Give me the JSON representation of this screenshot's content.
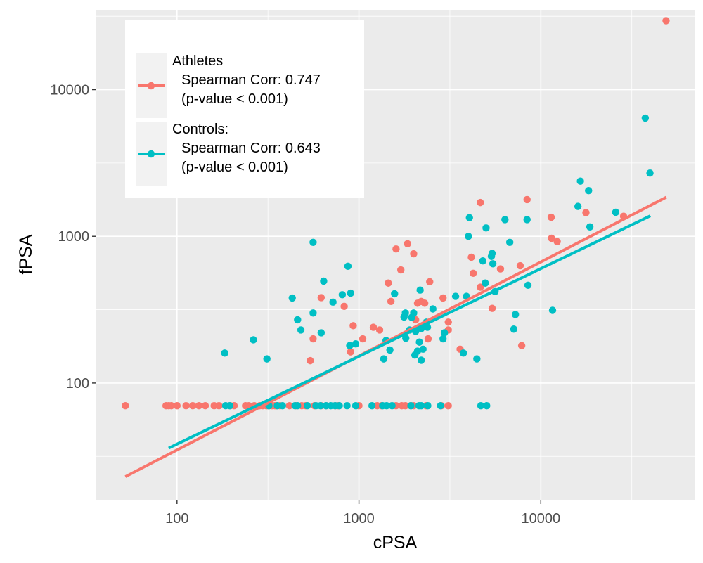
{
  "chart_data": {
    "type": "scatter",
    "xlabel": "cPSA",
    "ylabel": "fPSA",
    "x_scale": "log10",
    "y_scale": "log10",
    "xlim": [
      36,
      70000
    ],
    "ylim": [
      16,
      35000
    ],
    "x_ticks": [
      100,
      1000,
      10000
    ],
    "x_tick_labels": [
      "100",
      "1000",
      "10000"
    ],
    "y_ticks": [
      100,
      1000,
      10000
    ],
    "y_tick_labels": [
      "100",
      "1000",
      "10000"
    ],
    "grid": true,
    "legend_position": "top-left",
    "series": [
      {
        "name": "Athletes",
        "stats_line1": "Spearman Corr: 0.747",
        "stats_line2": "(p-value < 0.001)",
        "color": "#F8766D",
        "points": [
          [
            52,
            70
          ],
          [
            87,
            70
          ],
          [
            90,
            70
          ],
          [
            93,
            70
          ],
          [
            100,
            70
          ],
          [
            112,
            70
          ],
          [
            122,
            70
          ],
          [
            132,
            70
          ],
          [
            143,
            70
          ],
          [
            160,
            70
          ],
          [
            170,
            70
          ],
          [
            196,
            70
          ],
          [
            206,
            70
          ],
          [
            238,
            70
          ],
          [
            248,
            70
          ],
          [
            266,
            70
          ],
          [
            285,
            70
          ],
          [
            296,
            70
          ],
          [
            310,
            70
          ],
          [
            320,
            70
          ],
          [
            333,
            70
          ],
          [
            345,
            70
          ],
          [
            352,
            70
          ],
          [
            368,
            70
          ],
          [
            415,
            70
          ],
          [
            450,
            70
          ],
          [
            485,
            70
          ],
          [
            510,
            70
          ],
          [
            570,
            70
          ],
          [
            620,
            70
          ],
          [
            660,
            70
          ],
          [
            740,
            70
          ],
          [
            770,
            70
          ],
          [
            1000,
            70
          ],
          [
            1260,
            70
          ],
          [
            1330,
            70
          ],
          [
            1600,
            70
          ],
          [
            1720,
            70
          ],
          [
            1800,
            70
          ],
          [
            1930,
            70
          ],
          [
            2000,
            70
          ],
          [
            2340,
            70
          ],
          [
            2840,
            70
          ],
          [
            3100,
            70
          ],
          [
            540,
            142
          ],
          [
            560,
            200
          ],
          [
            620,
            382
          ],
          [
            830,
            333
          ],
          [
            900,
            163
          ],
          [
            930,
            246
          ],
          [
            1050,
            200
          ],
          [
            1200,
            240
          ],
          [
            1300,
            230
          ],
          [
            1450,
            480
          ],
          [
            1500,
            360
          ],
          [
            1600,
            820
          ],
          [
            1700,
            590
          ],
          [
            1850,
            890
          ],
          [
            2000,
            760
          ],
          [
            2050,
            270
          ],
          [
            2100,
            350
          ],
          [
            2200,
            360
          ],
          [
            2300,
            350
          ],
          [
            2400,
            200
          ],
          [
            2450,
            490
          ],
          [
            2900,
            380
          ],
          [
            3100,
            230
          ],
          [
            3100,
            260
          ],
          [
            3600,
            170
          ],
          [
            4150,
            720
          ],
          [
            4250,
            560
          ],
          [
            4650,
            1700
          ],
          [
            4650,
            450
          ],
          [
            5400,
            323
          ],
          [
            6000,
            600
          ],
          [
            7700,
            630
          ],
          [
            7850,
            180
          ],
          [
            8400,
            1780
          ],
          [
            11400,
            1350
          ],
          [
            11450,
            970
          ],
          [
            12300,
            920
          ],
          [
            17700,
            1450
          ],
          [
            28500,
            1370
          ],
          [
            48800,
            29500
          ]
        ],
        "fit": [
          [
            52,
            23
          ],
          [
            49000,
            1850
          ]
        ]
      },
      {
        "name": "Controls:",
        "stats_line1": "Spearman Corr: 0.643",
        "stats_line2": "(p-value < 0.001)",
        "color": "#00BFC4",
        "points": [
          [
            185,
            70
          ],
          [
            195,
            70
          ],
          [
            320,
            70
          ],
          [
            356,
            70
          ],
          [
            380,
            70
          ],
          [
            445,
            70
          ],
          [
            460,
            70
          ],
          [
            520,
            70
          ],
          [
            580,
            70
          ],
          [
            615,
            70
          ],
          [
            660,
            70
          ],
          [
            700,
            70
          ],
          [
            740,
            70
          ],
          [
            780,
            70
          ],
          [
            860,
            70
          ],
          [
            960,
            70
          ],
          [
            1180,
            70
          ],
          [
            1350,
            70
          ],
          [
            1420,
            70
          ],
          [
            1520,
            70
          ],
          [
            1930,
            70
          ],
          [
            2140,
            70
          ],
          [
            2200,
            70
          ],
          [
            2390,
            70
          ],
          [
            2810,
            70
          ],
          [
            4680,
            70
          ],
          [
            5040,
            70
          ],
          [
            183,
            160
          ],
          [
            263,
            197
          ],
          [
            312,
            146
          ],
          [
            430,
            380
          ],
          [
            460,
            270
          ],
          [
            480,
            230
          ],
          [
            560,
            910
          ],
          [
            560,
            300
          ],
          [
            620,
            220
          ],
          [
            640,
            495
          ],
          [
            720,
            356
          ],
          [
            810,
            400
          ],
          [
            870,
            625
          ],
          [
            890,
            180
          ],
          [
            900,
            410
          ],
          [
            960,
            185
          ],
          [
            1370,
            146
          ],
          [
            1410,
            195
          ],
          [
            1480,
            168
          ],
          [
            1570,
            406
          ],
          [
            1770,
            282
          ],
          [
            1800,
            300
          ],
          [
            1810,
            202
          ],
          [
            1900,
            230
          ],
          [
            1950,
            280
          ],
          [
            2000,
            300
          ],
          [
            2030,
            155
          ],
          [
            2050,
            225
          ],
          [
            2100,
            165
          ],
          [
            2150,
            190
          ],
          [
            2170,
            430
          ],
          [
            2200,
            143
          ],
          [
            2200,
            235
          ],
          [
            2250,
            170
          ],
          [
            2350,
            260
          ],
          [
            2380,
            240
          ],
          [
            2550,
            320
          ],
          [
            2900,
            200
          ],
          [
            2950,
            220
          ],
          [
            3400,
            390
          ],
          [
            3750,
            160
          ],
          [
            3900,
            390
          ],
          [
            4000,
            1000
          ],
          [
            4050,
            1340
          ],
          [
            4450,
            146
          ],
          [
            4800,
            680
          ],
          [
            4950,
            480
          ],
          [
            5000,
            1140
          ],
          [
            5350,
            730
          ],
          [
            5400,
            765
          ],
          [
            5450,
            650
          ],
          [
            5600,
            420
          ],
          [
            6350,
            1300
          ],
          [
            6750,
            910
          ],
          [
            7100,
            233
          ],
          [
            7250,
            293
          ],
          [
            8400,
            1300
          ],
          [
            8500,
            464
          ],
          [
            11600,
            313
          ],
          [
            16000,
            1600
          ],
          [
            16500,
            2380
          ],
          [
            18300,
            2050
          ],
          [
            18600,
            1160
          ],
          [
            25800,
            1460
          ],
          [
            37500,
            6400
          ],
          [
            39800,
            2700
          ]
        ],
        "fit": [
          [
            90,
            36
          ],
          [
            40000,
            1380
          ]
        ]
      }
    ]
  }
}
